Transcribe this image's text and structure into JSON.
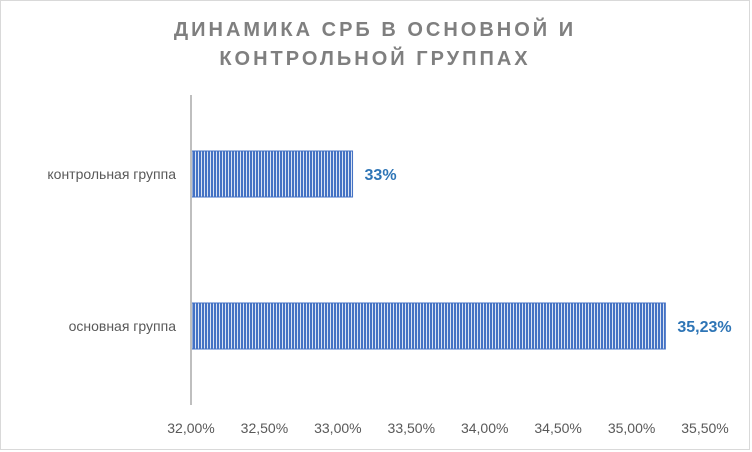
{
  "chart_data": {
    "type": "bar",
    "orientation": "horizontal",
    "title": "ДИНАМИКА СРБ В ОСНОВНОЙ И КОНТРОЛЬНОЙ ГРУППАХ",
    "title_lines": [
      "ДИНАМИКА СРБ В ОСНОВНОЙ И",
      "КОНТРОЛЬНОЙ ГРУППАХ"
    ],
    "categories": [
      "контрольная группа",
      "основная группа"
    ],
    "values": [
      33.1,
      35.23
    ],
    "data_labels": [
      "33%",
      "35,23%"
    ],
    "xlim": [
      32.0,
      35.5
    ],
    "xticks": [
      32.0,
      32.5,
      33.0,
      33.5,
      34.0,
      34.5,
      35.0,
      35.5
    ],
    "xtick_labels": [
      "32,00%",
      "32,50%",
      "33,00%",
      "33,50%",
      "34,00%",
      "34,50%",
      "35,00%",
      "35,50%"
    ],
    "xlabel": "",
    "ylabel": "",
    "grid": false,
    "legend": "none",
    "colors": {
      "bar": "#4472c4",
      "bar_stripe_light": "#dae3f3",
      "data_label": "#2e75b6",
      "title": "#7f7f7f",
      "axis_text": "#595959",
      "axis_line": "#bfbfbf"
    }
  }
}
